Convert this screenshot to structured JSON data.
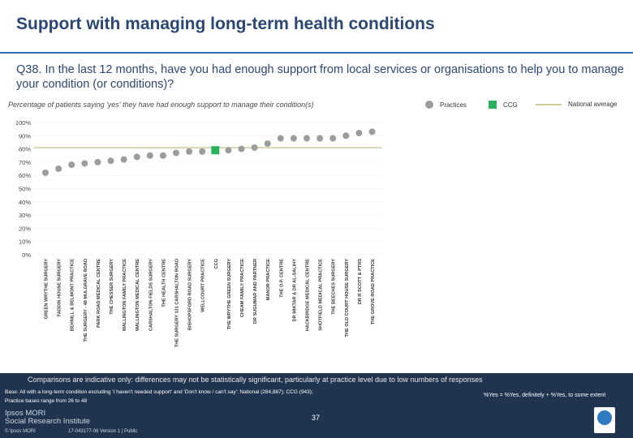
{
  "header": {
    "title": "Support with managing long-term health conditions",
    "question": "Q38. In the last 12 months, have you had enough support from local services or organisations to help you to manage your condition (or conditions)?",
    "subtitle": "Percentage of patients saying 'yes' they have had enough support to manage their condition(s)"
  },
  "legend": {
    "practices": "Practices",
    "ccg": "CCG",
    "national": "National average"
  },
  "footer": {
    "comparisons": "Comparisons are indicative only: differences may not be statistically significant, particularly at practice level due to low numbers of responses",
    "base_line1": "Base: All with a long-term condition excluding 'I haven't needed support' and 'Don't know / can't say': National (284,887); CCG (943);",
    "base_line2": "Practice bases range from 26 to 48",
    "yes_definition": "%Yes = %Yes, definitely + %Yes, to some extent",
    "page_number": "37",
    "org_line1": "Ipsos MORI",
    "org_line2": "Social Research Institute",
    "copyright": "© Ipsos MORI",
    "reference": "17-043177-06 Version 1 | Public"
  },
  "colors": {
    "practice": "#9c9c9c",
    "ccg": "#2bb05e",
    "national": "#d0cc9a",
    "title": "#2b4775",
    "band": "#20344f"
  },
  "chart_data": {
    "type": "scatter",
    "ylim": [
      0,
      100
    ],
    "ytick_labels": [
      "0%",
      "10%",
      "20%",
      "30%",
      "40%",
      "50%",
      "60%",
      "70%",
      "80%",
      "90%",
      "100%"
    ],
    "national_average": 81,
    "categories": [
      "GREEN WRYTHE SURGERY",
      "FADDIN HOUSE SURGERY",
      "BEHNILL & BELMONT PRACTICE",
      "THE SURGERY - 48 MULGRAVE ROAD",
      "PARK ROAD MEDICAL CENTRE",
      "THE CHESSER SURGERY",
      "WALLINGTON FAMILY PRACTICE",
      "WALLINGTON MEDICAL CENTRE",
      "CARSHALTON FIELDS SURGERY",
      "THE HEALTH CENTRE",
      "THE SURGERY 131 CARSHALTON ROAD",
      "BISHOPSFORD ROAD SURGERY",
      "WELLCOURT PRACTICE",
      "CCG",
      "THE WRYTHE GREEN SURGERY",
      "CHEAM FAMILY PRACTICE",
      "DR SUGUMAR AND PARTNER",
      "MANOR PRACTICE",
      "THE O.P. CENTRE",
      "DR MIKTAR & DR AL-SALIHY",
      "HACKBRIDGE MEDICAL CENTRE",
      "SHOTFIELD MEDICAL PRACTICE",
      "THE BEECHES SURGERY",
      "THE OLD COURT HOUSE SURGERY",
      "DR R SCOTT & PTRS",
      "THE GROVE ROAD PRACTICE"
    ],
    "values": [
      62,
      65,
      68,
      69,
      70,
      71,
      72,
      74,
      75,
      75,
      77,
      78,
      78,
      79,
      79,
      80,
      81,
      84,
      88,
      88,
      88,
      88,
      88,
      90,
      92,
      93
    ],
    "ccg_index": 13
  }
}
